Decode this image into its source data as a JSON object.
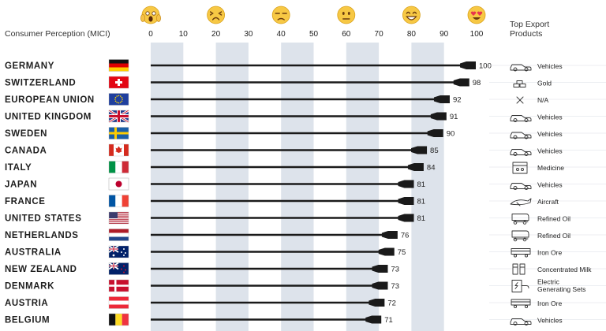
{
  "chart_data": {
    "type": "bar",
    "xlabel": "Consumer Perception (MICI)",
    "xlim": [
      0,
      100
    ],
    "xticks": [
      0,
      10,
      20,
      30,
      40,
      50,
      60,
      70,
      80,
      90,
      100
    ],
    "grid": "alternating vertical bands",
    "categories": [
      "GERMANY",
      "SWITZERLAND",
      "EUROPEAN UNION",
      "UNITED KINGDOM",
      "SWEDEN",
      "CANADA",
      "ITALY",
      "JAPAN",
      "FRANCE",
      "UNITED STATES",
      "NETHERLANDS",
      "AUSTRALIA",
      "NEW ZEALAND",
      "DENMARK",
      "AUSTRIA",
      "BELGIUM"
    ],
    "values": [
      100,
      98,
      92,
      91,
      90,
      85,
      84,
      81,
      81,
      81,
      76,
      75,
      73,
      73,
      72,
      71
    ],
    "flags": [
      "germany-flag",
      "switzerland-flag",
      "eu-flag",
      "uk-flag",
      "sweden-flag",
      "canada-flag",
      "italy-flag",
      "japan-flag",
      "france-flag",
      "usa-flag",
      "netherlands-flag",
      "australia-flag",
      "new-zealand-flag",
      "denmark-flag",
      "austria-flag",
      "belgium-flag"
    ],
    "product_column_title": [
      "Top Export",
      "Products"
    ],
    "products": [
      {
        "label": [
          "Vehicles"
        ],
        "icon": "car-icon"
      },
      {
        "label": [
          "Gold"
        ],
        "icon": "gold-bars-icon"
      },
      {
        "label": [
          "N/A"
        ],
        "icon": "cross-icon"
      },
      {
        "label": [
          "Vehicles"
        ],
        "icon": "car-icon"
      },
      {
        "label": [
          "Vehicles"
        ],
        "icon": "car-icon"
      },
      {
        "label": [
          "Vehicles"
        ],
        "icon": "car-icon"
      },
      {
        "label": [
          "Medicine"
        ],
        "icon": "medicine-icon"
      },
      {
        "label": [
          "Vehicles"
        ],
        "icon": "car-icon"
      },
      {
        "label": [
          "Aircraft"
        ],
        "icon": "aircraft-icon"
      },
      {
        "label": [
          "Refined Oil"
        ],
        "icon": "oil-tanker-icon"
      },
      {
        "label": [
          "Refined Oil"
        ],
        "icon": "oil-tanker-icon"
      },
      {
        "label": [
          "Iron Ore"
        ],
        "icon": "ore-cart-icon"
      },
      {
        "label": [
          "Concentrated Milk"
        ],
        "icon": "milk-icon"
      },
      {
        "label": [
          "Electric",
          "Generating Sets"
        ],
        "icon": "generator-icon"
      },
      {
        "label": [
          "Iron Ore"
        ],
        "icon": "ore-cart-icon"
      },
      {
        "label": [
          "Vehicles"
        ],
        "icon": "car-icon"
      }
    ],
    "emoji_scale": [
      {
        "value": 0,
        "icon": "screaming-face-icon"
      },
      {
        "value": 20,
        "icon": "tired-face-icon"
      },
      {
        "value": 40,
        "icon": "unamused-face-icon"
      },
      {
        "value": 60,
        "icon": "neutral-face-icon"
      },
      {
        "value": 80,
        "icon": "grinning-face-icon"
      },
      {
        "value": 100,
        "icon": "heart-eyes-face-icon"
      }
    ]
  }
}
